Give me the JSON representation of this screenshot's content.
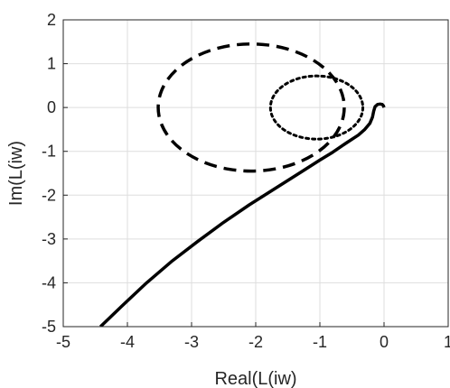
{
  "chart_data": {
    "type": "line",
    "title": "",
    "xlabel": "Real(L(iw)",
    "ylabel": "Im(L(iw)",
    "xlim": [
      -5,
      1
    ],
    "ylim": [
      -5,
      2
    ],
    "xticks": [
      -5,
      -4,
      -3,
      -2,
      -1,
      0,
      1
    ],
    "yticks": [
      -5,
      -4,
      -3,
      -2,
      -1,
      0,
      1,
      2
    ],
    "xtick_labels": [
      "-5",
      "-4",
      "-3",
      "-2",
      "-1",
      "0",
      "1"
    ],
    "ytick_labels": [
      "-5",
      "-4",
      "-3",
      "-2",
      "-1",
      "0",
      "1",
      "2"
    ],
    "grid": true,
    "legend": "none",
    "series": [
      {
        "style": "solid",
        "color": "#000000",
        "x": [
          -4.42,
          -4.1,
          -3.7,
          -3.3,
          -2.9,
          -2.5,
          -2.1,
          -1.7,
          -1.3,
          -1.0,
          -0.8,
          -0.6,
          -0.4,
          -0.3,
          -0.22,
          -0.18,
          -0.16,
          -0.14,
          -0.1,
          -0.06,
          -0.03,
          -0.01,
          0.0
        ],
        "y": [
          -5.0,
          -4.55,
          -4.0,
          -3.5,
          -3.05,
          -2.62,
          -2.22,
          -1.85,
          -1.48,
          -1.2,
          -1.02,
          -0.82,
          -0.63,
          -0.5,
          -0.36,
          -0.22,
          -0.08,
          0.02,
          0.07,
          0.08,
          0.07,
          0.04,
          0.0
        ]
      },
      {
        "style": "dashed",
        "color": "#000000",
        "shape": "ellipse",
        "center": [
          -2.07,
          0.0
        ],
        "radius_x": 1.45,
        "radius_y": 1.45
      },
      {
        "style": "dotted",
        "color": "#000000",
        "shape": "ellipse",
        "center": [
          -1.05,
          0.0
        ],
        "radius_x": 0.72,
        "radius_y": 0.72
      }
    ]
  }
}
